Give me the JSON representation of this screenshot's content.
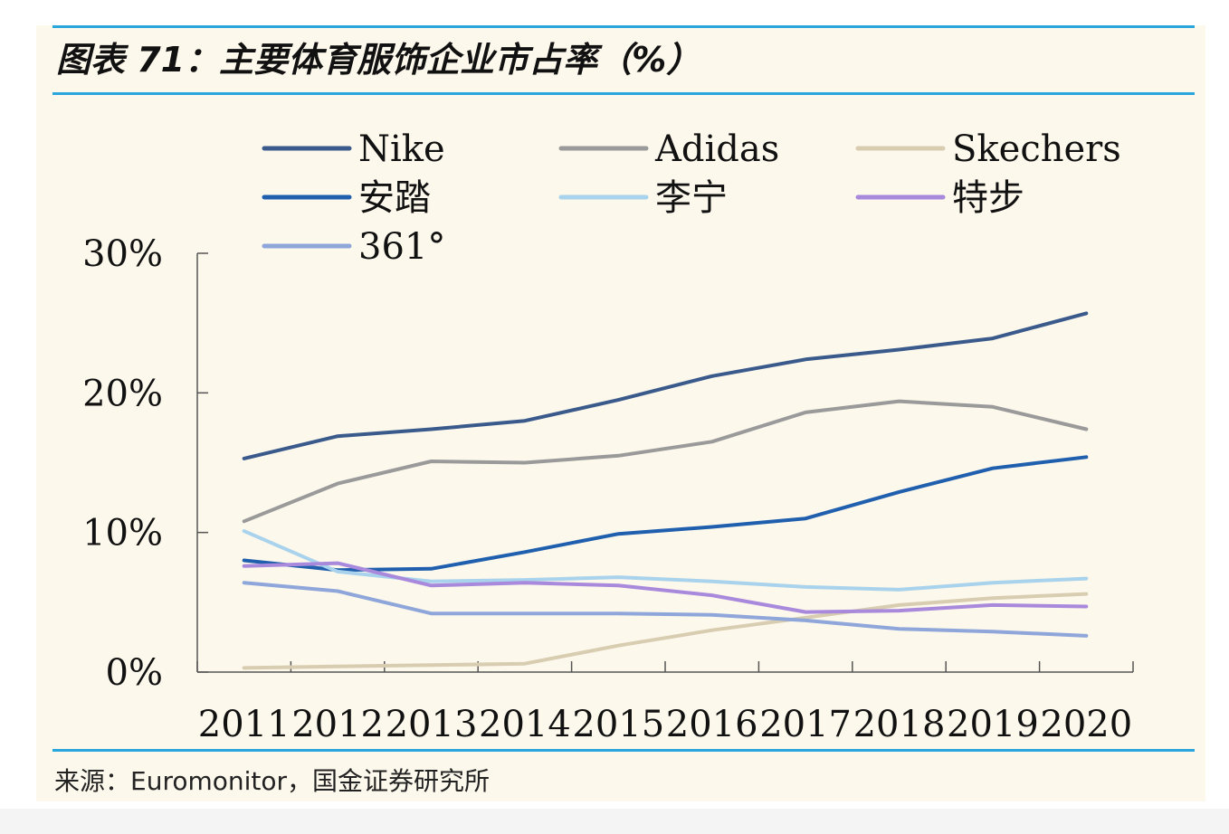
{
  "title": "图表 71：主要体育服饰企业市占率（%）",
  "source": "来源：Euromonitor，国金证券研究所",
  "chart_data": {
    "type": "line",
    "title": "图表 71：主要体育服饰企业市占率（%）",
    "xlabel": "",
    "ylabel": "",
    "categories": [
      "2011",
      "2012",
      "2013",
      "2014",
      "2015",
      "2016",
      "2017",
      "2018",
      "2019",
      "2020"
    ],
    "ylim": [
      0,
      30
    ],
    "yticks": [
      "0%",
      "10%",
      "20%",
      "30%"
    ],
    "grid": false,
    "legend_position": "top",
    "series": [
      {
        "name": "Nike",
        "color": "#3a5a8c",
        "values": [
          15.3,
          16.9,
          17.4,
          18.0,
          19.5,
          21.2,
          22.4,
          23.1,
          23.9,
          25.7
        ]
      },
      {
        "name": "Adidas",
        "color": "#9a9a9a",
        "values": [
          10.8,
          13.5,
          15.1,
          15.0,
          15.5,
          16.5,
          18.6,
          19.4,
          19.0,
          17.4
        ]
      },
      {
        "name": "Skechers",
        "color": "#d8cdb0",
        "values": [
          0.3,
          0.4,
          0.5,
          0.6,
          1.9,
          3.0,
          3.9,
          4.8,
          5.3,
          5.6
        ]
      },
      {
        "name": "安踏",
        "color": "#1f5fae",
        "values": [
          8.0,
          7.3,
          7.4,
          8.6,
          9.9,
          10.4,
          11.0,
          12.9,
          14.6,
          15.4
        ]
      },
      {
        "name": "李宁",
        "color": "#a9d3ec",
        "values": [
          10.1,
          7.2,
          6.5,
          6.6,
          6.8,
          6.5,
          6.1,
          5.9,
          6.4,
          6.7
        ]
      },
      {
        "name": "特步",
        "color": "#a889dc",
        "values": [
          7.6,
          7.8,
          6.2,
          6.4,
          6.2,
          5.5,
          4.3,
          4.4,
          4.8,
          4.7
        ]
      },
      {
        "name": "361°",
        "color": "#8ea6da",
        "values": [
          6.4,
          5.8,
          4.2,
          4.2,
          4.2,
          4.1,
          3.7,
          3.1,
          2.9,
          2.6
        ]
      }
    ]
  }
}
